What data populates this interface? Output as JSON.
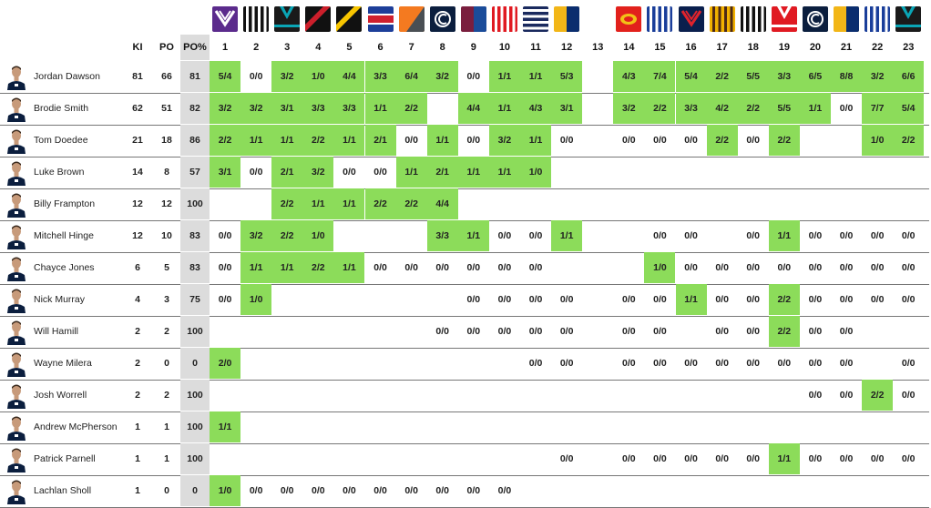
{
  "columns": {
    "ki": "KI",
    "po": "PO",
    "po_pct": "PO%",
    "rounds": [
      "1",
      "2",
      "3",
      "4",
      "5",
      "6",
      "7",
      "8",
      "9",
      "10",
      "11",
      "12",
      "13",
      "14",
      "15",
      "16",
      "17",
      "18",
      "19",
      "20",
      "21",
      "22",
      "23"
    ]
  },
  "team_logos": [
    {
      "name": "fremantle-logo-icon",
      "colors": [
        "#5b2b8c",
        "#ffffff"
      ],
      "style": "chevron"
    },
    {
      "name": "collingwood-logo-icon",
      "colors": [
        "#111111",
        "#ffffff"
      ],
      "style": "vstripes"
    },
    {
      "name": "port-adelaide-logo-icon",
      "colors": [
        "#1a1a1a",
        "#0aa5b5"
      ],
      "style": "vneck"
    },
    {
      "name": "essendon-logo-icon",
      "colors": [
        "#111111",
        "#cc1f2b"
      ],
      "style": "sash"
    },
    {
      "name": "richmond-logo-icon",
      "colors": [
        "#111111",
        "#f7c500"
      ],
      "style": "sash"
    },
    {
      "name": "western-bulldogs-logo-icon",
      "colors": [
        "#1d3e99",
        "#d0202e"
      ],
      "style": "hband"
    },
    {
      "name": "gws-giants-logo-icon",
      "colors": [
        "#f47a20",
        "#4a4f54"
      ],
      "style": "diag"
    },
    {
      "name": "carlton-logo-icon",
      "colors": [
        "#0b1e3e",
        "#ffffff"
      ],
      "style": "monogram"
    },
    {
      "name": "brisbane-lions-logo-icon",
      "colors": [
        "#7a1e3e",
        "#1a4c9a"
      ],
      "style": "split"
    },
    {
      "name": "sydney-swans-logo-icon",
      "colors": [
        "#e01a22",
        "#ffffff"
      ],
      "style": "vstripes"
    },
    {
      "name": "geelong-logo-icon",
      "colors": [
        "#1a2a5e",
        "#ffffff"
      ],
      "style": "hstripes"
    },
    {
      "name": "west-coast-logo-icon",
      "colors": [
        "#f2b617",
        "#0a2d6e"
      ],
      "style": "split"
    },
    {
      "name": "gold-coast-logo-icon",
      "colors": [
        "#e2211c",
        "#f2c117"
      ],
      "style": "badge"
    },
    {
      "name": "north-melbourne-logo-icon",
      "colors": [
        "#1a3e9a",
        "#ffffff"
      ],
      "style": "vstripes"
    },
    {
      "name": "melbourne-logo-icon",
      "colors": [
        "#0a1f4d",
        "#e0232c"
      ],
      "style": "chevron"
    },
    {
      "name": "hawthorn-logo-icon",
      "colors": [
        "#f2b200",
        "#4d2a16"
      ],
      "style": "vstripes"
    },
    {
      "name": "collingwood-logo-icon",
      "colors": [
        "#111111",
        "#ffffff"
      ],
      "style": "vstripes"
    },
    {
      "name": "sydney-swans-logo-icon",
      "colors": [
        "#e01a22",
        "#ffffff"
      ],
      "style": "vneck"
    },
    {
      "name": "carlton-logo-icon",
      "colors": [
        "#0b1e3e",
        "#ffffff"
      ],
      "style": "monogram"
    },
    {
      "name": "west-coast-logo-icon",
      "colors": [
        "#f2b617",
        "#0a2d6e"
      ],
      "style": "split"
    },
    {
      "name": "north-melbourne-logo-icon",
      "colors": [
        "#1a3e9a",
        "#ffffff"
      ],
      "style": "vstripes"
    },
    {
      "name": "port-adelaide-logo-icon",
      "colors": [
        "#1a1a1a",
        "#0aa5b5"
      ],
      "style": "vneck"
    }
  ],
  "logo_rounds": [
    1,
    2,
    3,
    4,
    5,
    6,
    7,
    8,
    9,
    10,
    11,
    12,
    14,
    15,
    16,
    17,
    18,
    19,
    20,
    21,
    22,
    23
  ],
  "highlight_color": "#8cdc5a",
  "players": [
    {
      "name": "Jordan Dawson",
      "ki": "81",
      "po": "66",
      "pct": "81",
      "rounds": [
        "5/4",
        "0/0",
        "3/2",
        "1/0",
        "4/4",
        "3/3",
        "6/4",
        "3/2",
        "0/0",
        "1/1",
        "1/1",
        "5/3",
        "",
        "4/3",
        "7/4",
        "5/4",
        "2/2",
        "5/5",
        "3/3",
        "6/5",
        "8/8",
        "3/2",
        "6/6"
      ]
    },
    {
      "name": "Brodie Smith",
      "ki": "62",
      "po": "51",
      "pct": "82",
      "rounds": [
        "3/2",
        "3/2",
        "3/1",
        "3/3",
        "3/3",
        "1/1",
        "2/2",
        "",
        "4/4",
        "1/1",
        "4/3",
        "3/1",
        "",
        "3/2",
        "2/2",
        "3/3",
        "4/2",
        "2/2",
        "5/5",
        "1/1",
        "0/0",
        "7/7",
        "5/4"
      ]
    },
    {
      "name": "Tom Doedee",
      "ki": "21",
      "po": "18",
      "pct": "86",
      "rounds": [
        "2/2",
        "1/1",
        "1/1",
        "2/2",
        "1/1",
        "2/1",
        "0/0",
        "1/1",
        "0/0",
        "3/2",
        "1/1",
        "0/0",
        "",
        "0/0",
        "0/0",
        "0/0",
        "2/2",
        "0/0",
        "2/2",
        "",
        "",
        "1/0",
        "2/2"
      ]
    },
    {
      "name": "Luke Brown",
      "ki": "14",
      "po": "8",
      "pct": "57",
      "rounds": [
        "3/1",
        "0/0",
        "2/1",
        "3/2",
        "0/0",
        "0/0",
        "1/1",
        "2/1",
        "1/1",
        "1/1",
        "1/0",
        "",
        "",
        "",
        "",
        "",
        "",
        "",
        "",
        "",
        "",
        "",
        ""
      ]
    },
    {
      "name": "Billy Frampton",
      "ki": "12",
      "po": "12",
      "pct": "100",
      "rounds": [
        "",
        "",
        "2/2",
        "1/1",
        "1/1",
        "2/2",
        "2/2",
        "4/4",
        "",
        "",
        "",
        "",
        "",
        "",
        "",
        "",
        "",
        "",
        "",
        "",
        "",
        "",
        ""
      ]
    },
    {
      "name": "Mitchell Hinge",
      "ki": "12",
      "po": "10",
      "pct": "83",
      "rounds": [
        "0/0",
        "3/2",
        "2/2",
        "1/0",
        "",
        "",
        "",
        "3/3",
        "1/1",
        "0/0",
        "0/0",
        "1/1",
        "",
        "",
        "0/0",
        "0/0",
        "",
        "0/0",
        "1/1",
        "0/0",
        "0/0",
        "0/0",
        "0/0"
      ]
    },
    {
      "name": "Chayce Jones",
      "ki": "6",
      "po": "5",
      "pct": "83",
      "rounds": [
        "0/0",
        "1/1",
        "1/1",
        "2/2",
        "1/1",
        "0/0",
        "0/0",
        "0/0",
        "0/0",
        "0/0",
        "0/0",
        "",
        "",
        "",
        "1/0",
        "0/0",
        "0/0",
        "0/0",
        "0/0",
        "0/0",
        "0/0",
        "0/0",
        "0/0"
      ]
    },
    {
      "name": "Nick Murray",
      "ki": "4",
      "po": "3",
      "pct": "75",
      "rounds": [
        "0/0",
        "1/0",
        "",
        "",
        "",
        "",
        "",
        "",
        "0/0",
        "0/0",
        "0/0",
        "0/0",
        "",
        "0/0",
        "0/0",
        "1/1",
        "0/0",
        "0/0",
        "2/2",
        "0/0",
        "0/0",
        "0/0",
        "0/0"
      ]
    },
    {
      "name": "Will Hamill",
      "ki": "2",
      "po": "2",
      "pct": "100",
      "rounds": [
        "",
        "",
        "",
        "",
        "",
        "",
        "",
        "0/0",
        "0/0",
        "0/0",
        "0/0",
        "0/0",
        "",
        "0/0",
        "0/0",
        "",
        "0/0",
        "0/0",
        "2/2",
        "0/0",
        "0/0",
        "",
        ""
      ]
    },
    {
      "name": "Wayne Milera",
      "ki": "2",
      "po": "0",
      "pct": "0",
      "rounds": [
        "2/0",
        "",
        "",
        "",
        "",
        "",
        "",
        "",
        "",
        "",
        "0/0",
        "0/0",
        "",
        "0/0",
        "0/0",
        "0/0",
        "0/0",
        "0/0",
        "0/0",
        "0/0",
        "0/0",
        "",
        "0/0"
      ]
    },
    {
      "name": "Josh Worrell",
      "ki": "2",
      "po": "2",
      "pct": "100",
      "rounds": [
        "",
        "",
        "",
        "",
        "",
        "",
        "",
        "",
        "",
        "",
        "",
        "",
        "",
        "",
        "",
        "",
        "",
        "",
        "",
        "0/0",
        "0/0",
        "2/2",
        "0/0"
      ]
    },
    {
      "name": "Andrew McPherson",
      "ki": "1",
      "po": "1",
      "pct": "100",
      "rounds": [
        "1/1",
        "",
        "",
        "",
        "",
        "",
        "",
        "",
        "",
        "",
        "",
        "",
        "",
        "",
        "",
        "",
        "",
        "",
        "",
        "",
        "",
        "",
        ""
      ]
    },
    {
      "name": "Patrick Parnell",
      "ki": "1",
      "po": "1",
      "pct": "100",
      "rounds": [
        "",
        "",
        "",
        "",
        "",
        "",
        "",
        "",
        "",
        "",
        "",
        "0/0",
        "",
        "0/0",
        "0/0",
        "0/0",
        "0/0",
        "0/0",
        "1/1",
        "0/0",
        "0/0",
        "0/0",
        "0/0"
      ]
    },
    {
      "name": "Lachlan Sholl",
      "ki": "1",
      "po": "0",
      "pct": "0",
      "rounds": [
        "1/0",
        "0/0",
        "0/0",
        "0/0",
        "0/0",
        "0/0",
        "0/0",
        "0/0",
        "0/0",
        "0/0",
        "",
        "",
        "",
        "",
        "",
        "",
        "",
        "",
        "",
        "",
        "",
        "",
        ""
      ]
    }
  ]
}
